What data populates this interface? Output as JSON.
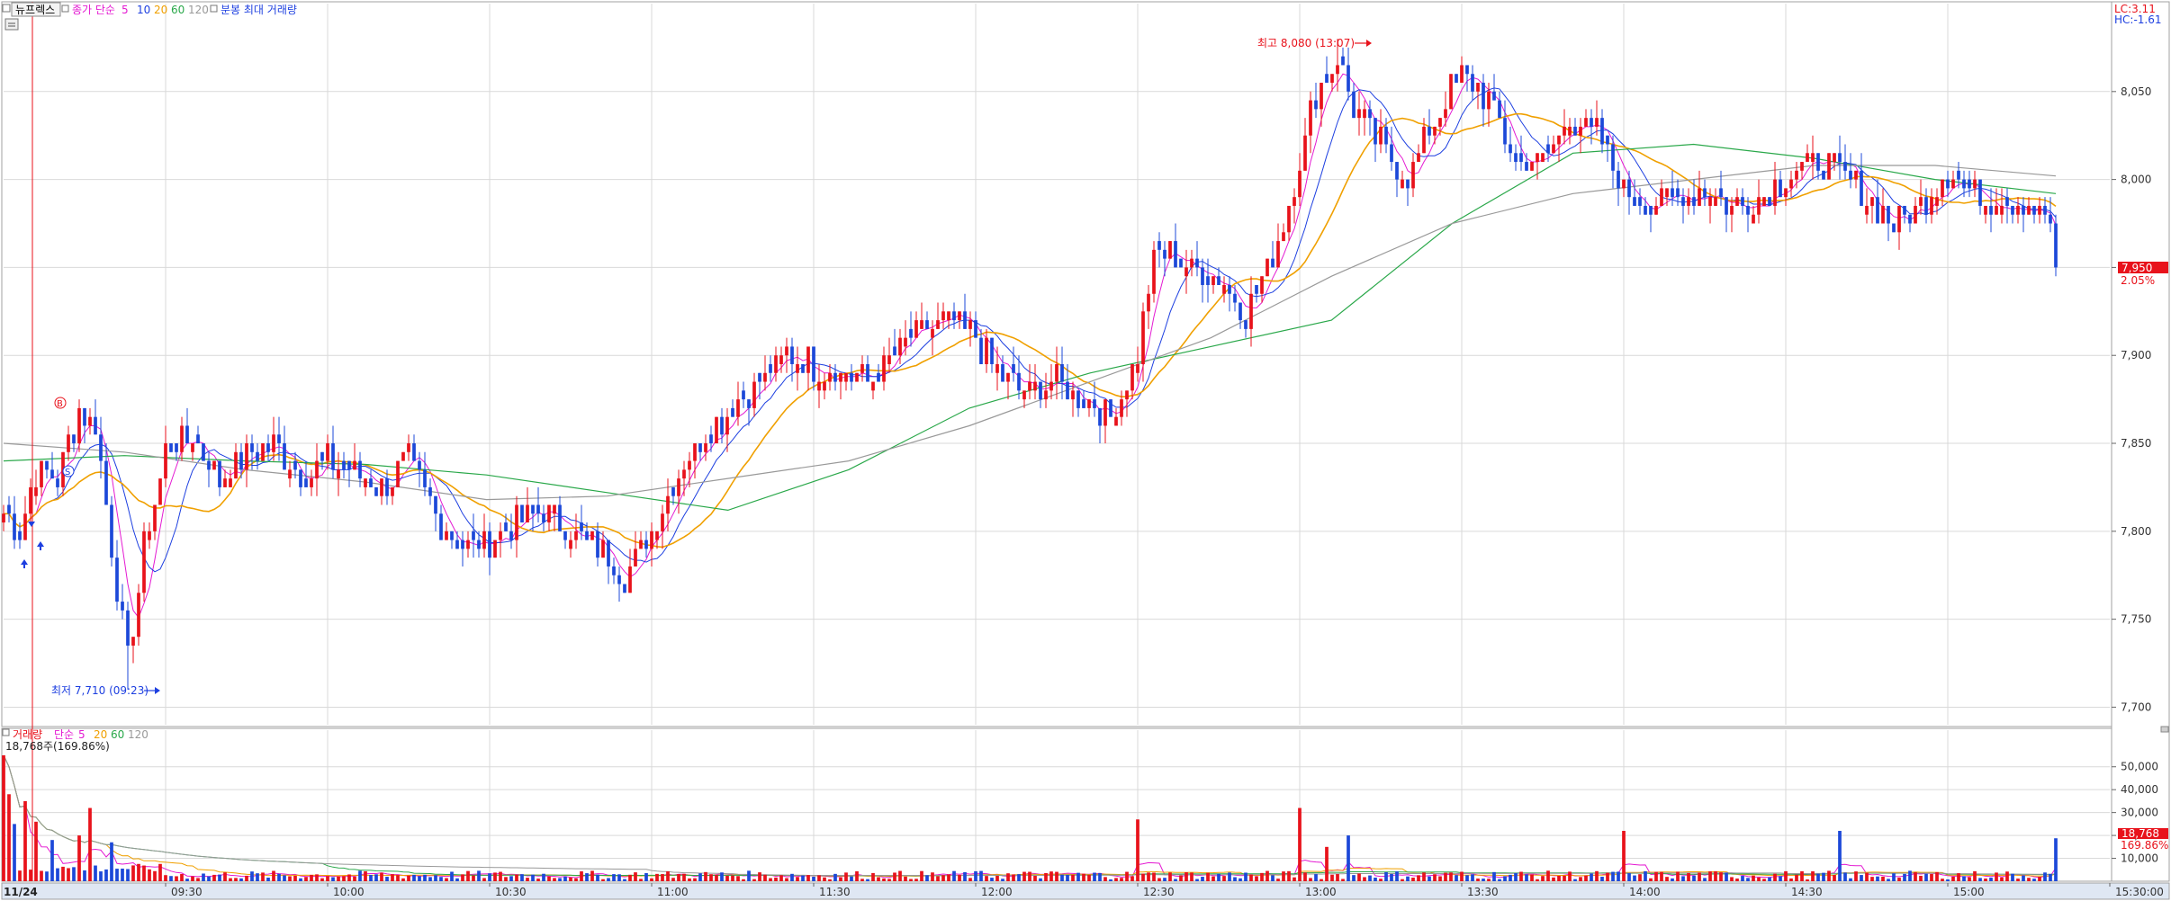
{
  "header": {
    "stock_name": "뉴프렉스",
    "ma_title": "종가 단순",
    "ma_periods": [
      "5",
      "10",
      "20",
      "60",
      "120"
    ],
    "ma_colors": [
      "#e41ad2",
      "#1d3fe0",
      "#f0a000",
      "#2aa84a",
      "#999999"
    ],
    "volume_label": "분봉 최대 거래량"
  },
  "right_info": {
    "lc": "LC:3.11",
    "hc": "HC:-1.61"
  },
  "price_badge": {
    "price": "7,950",
    "pct": "2.05%"
  },
  "annotations": {
    "high": "최고 8,080 (13:07)",
    "low": "최저 7,710 (09:23)",
    "marker_b": "B",
    "marker_s": "S"
  },
  "volume_panel": {
    "title": "거래량",
    "ma_title": "단순",
    "ma_periods": [
      "5",
      "20",
      "60",
      "120"
    ],
    "ma_colors": [
      "#e41ad2",
      "#f0a000",
      "#2aa84a",
      "#999999"
    ],
    "current": "18,768주(169.86%)"
  },
  "volume_badge": {
    "value": "18,768",
    "pct": "169.86%"
  },
  "colors": {
    "up": "#e8121b",
    "down": "#1c48d8",
    "accent": "#e8121b",
    "grid": "#d9d9d9"
  },
  "x_axis": {
    "date": "11/24",
    "ticks": [
      "09:30",
      "10:00",
      "10:30",
      "11:00",
      "11:30",
      "12:00",
      "12:30",
      "13:00",
      "13:30",
      "14:00",
      "14:30",
      "15:00",
      "15:30:00"
    ]
  },
  "chart_data": [
    {
      "type": "candlestick",
      "interval": "1 minute",
      "x_range": [
        "09:00",
        "15:30"
      ],
      "ylim": [
        7690,
        8100
      ],
      "y_ticks": [
        "7,700",
        "7,750",
        "7,800",
        "7,850",
        "7,900",
        "7,950",
        "8,000",
        "8,050"
      ],
      "high": {
        "value": 8080,
        "time": "13:07"
      },
      "low": {
        "value": 7710,
        "time": "09:23"
      },
      "last": 7950,
      "change_pct": 2.05,
      "anchor_prices": [
        {
          "time": "09:00",
          "price": 7810
        },
        {
          "time": "09:03",
          "price": 7800
        },
        {
          "time": "09:06",
          "price": 7835
        },
        {
          "time": "09:10",
          "price": 7830
        },
        {
          "time": "09:14",
          "price": 7870
        },
        {
          "time": "09:17",
          "price": 7860
        },
        {
          "time": "09:20",
          "price": 7790
        },
        {
          "time": "09:23",
          "price": 7725
        },
        {
          "time": "09:26",
          "price": 7790
        },
        {
          "time": "09:30",
          "price": 7845
        },
        {
          "time": "09:35",
          "price": 7855
        },
        {
          "time": "09:40",
          "price": 7830
        },
        {
          "time": "09:45",
          "price": 7845
        },
        {
          "time": "09:50",
          "price": 7850
        },
        {
          "time": "09:55",
          "price": 7830
        },
        {
          "time": "10:00",
          "price": 7840
        },
        {
          "time": "10:10",
          "price": 7825
        },
        {
          "time": "10:15",
          "price": 7840
        },
        {
          "time": "10:20",
          "price": 7810
        },
        {
          "time": "10:25",
          "price": 7790
        },
        {
          "time": "10:30",
          "price": 7795
        },
        {
          "time": "10:35",
          "price": 7805
        },
        {
          "time": "10:40",
          "price": 7810
        },
        {
          "time": "10:45",
          "price": 7800
        },
        {
          "time": "10:50",
          "price": 7790
        },
        {
          "time": "10:55",
          "price": 7775
        },
        {
          "time": "11:00",
          "price": 7800
        },
        {
          "time": "11:05",
          "price": 7835
        },
        {
          "time": "11:10",
          "price": 7855
        },
        {
          "time": "11:15",
          "price": 7870
        },
        {
          "time": "11:20",
          "price": 7885
        },
        {
          "time": "11:25",
          "price": 7900
        },
        {
          "time": "11:30",
          "price": 7895
        },
        {
          "time": "11:35",
          "price": 7890
        },
        {
          "time": "11:40",
          "price": 7885
        },
        {
          "time": "11:45",
          "price": 7900
        },
        {
          "time": "11:50",
          "price": 7915
        },
        {
          "time": "11:55",
          "price": 7920
        },
        {
          "time": "12:00",
          "price": 7910
        },
        {
          "time": "12:05",
          "price": 7885
        },
        {
          "time": "12:10",
          "price": 7880
        },
        {
          "time": "12:15",
          "price": 7885
        },
        {
          "time": "12:20",
          "price": 7875
        },
        {
          "time": "12:25",
          "price": 7865
        },
        {
          "time": "12:30",
          "price": 7900
        },
        {
          "time": "12:33",
          "price": 7955
        },
        {
          "time": "12:36",
          "price": 7960
        },
        {
          "time": "12:40",
          "price": 7950
        },
        {
          "time": "12:45",
          "price": 7945
        },
        {
          "time": "12:50",
          "price": 7925
        },
        {
          "time": "12:55",
          "price": 7955
        },
        {
          "time": "13:00",
          "price": 8010
        },
        {
          "time": "13:03",
          "price": 8050
        },
        {
          "time": "13:07",
          "price": 8070
        },
        {
          "time": "13:10",
          "price": 8040
        },
        {
          "time": "13:15",
          "price": 8020
        },
        {
          "time": "13:20",
          "price": 8000
        },
        {
          "time": "13:25",
          "price": 8035
        },
        {
          "time": "13:30",
          "price": 8060
        },
        {
          "time": "13:35",
          "price": 8045
        },
        {
          "time": "13:40",
          "price": 8010
        },
        {
          "time": "13:45",
          "price": 8010
        },
        {
          "time": "13:50",
          "price": 8035
        },
        {
          "time": "13:55",
          "price": 8025
        },
        {
          "time": "14:00",
          "price": 7995
        },
        {
          "time": "14:05",
          "price": 7985
        },
        {
          "time": "14:10",
          "price": 7990
        },
        {
          "time": "14:15",
          "price": 7995
        },
        {
          "time": "14:20",
          "price": 7985
        },
        {
          "time": "14:25",
          "price": 7990
        },
        {
          "time": "14:30",
          "price": 8000
        },
        {
          "time": "14:35",
          "price": 8010
        },
        {
          "time": "14:40",
          "price": 8005
        },
        {
          "time": "14:45",
          "price": 7990
        },
        {
          "time": "14:50",
          "price": 7975
        },
        {
          "time": "14:55",
          "price": 7985
        },
        {
          "time": "15:00",
          "price": 8005
        },
        {
          "time": "15:05",
          "price": 7990
        },
        {
          "time": "15:10",
          "price": 7990
        },
        {
          "time": "15:15",
          "price": 7985
        },
        {
          "time": "15:20",
          "price": 7975
        },
        {
          "time": "15:20",
          "price": 7950
        }
      ],
      "ma_anchors": {
        "120": [
          7850,
          7845,
          7835,
          7828,
          7818,
          7820,
          7830,
          7840,
          7860,
          7885,
          7910,
          7945,
          7975,
          7992,
          8000,
          8008,
          8008,
          8002
        ],
        "60": [
          7840,
          7843,
          7840,
          7838,
          7832,
          7822,
          7812,
          7835,
          7870,
          7890,
          7905,
          7920,
          7975,
          8015,
          8020,
          8012,
          8000,
          7992
        ]
      }
    },
    {
      "type": "bar",
      "title": "거래량",
      "ylim": [
        0,
        55000
      ],
      "y_ticks": [
        "10,000",
        "20,000",
        "30,000",
        "40,000",
        "50,000"
      ],
      "last": 18768,
      "last_pct": 169.86,
      "spike_volumes": [
        {
          "time": "09:00",
          "value": 62000
        },
        {
          "time": "09:01",
          "value": 38000
        },
        {
          "time": "09:02",
          "value": 25000
        },
        {
          "time": "09:04",
          "value": 35000
        },
        {
          "time": "09:06",
          "value": 26000
        },
        {
          "time": "09:09",
          "value": 18000
        },
        {
          "time": "09:14",
          "value": 20000
        },
        {
          "time": "09:16",
          "value": 32000
        },
        {
          "time": "09:20",
          "value": 17000
        },
        {
          "time": "12:30",
          "value": 27000
        },
        {
          "time": "13:00",
          "value": 32000
        },
        {
          "time": "13:05",
          "value": 15000
        },
        {
          "time": "13:09",
          "value": 20000
        },
        {
          "time": "14:00",
          "value": 22000
        },
        {
          "time": "14:40",
          "value": 22000
        },
        {
          "time": "15:20",
          "value": 18768
        }
      ]
    }
  ]
}
